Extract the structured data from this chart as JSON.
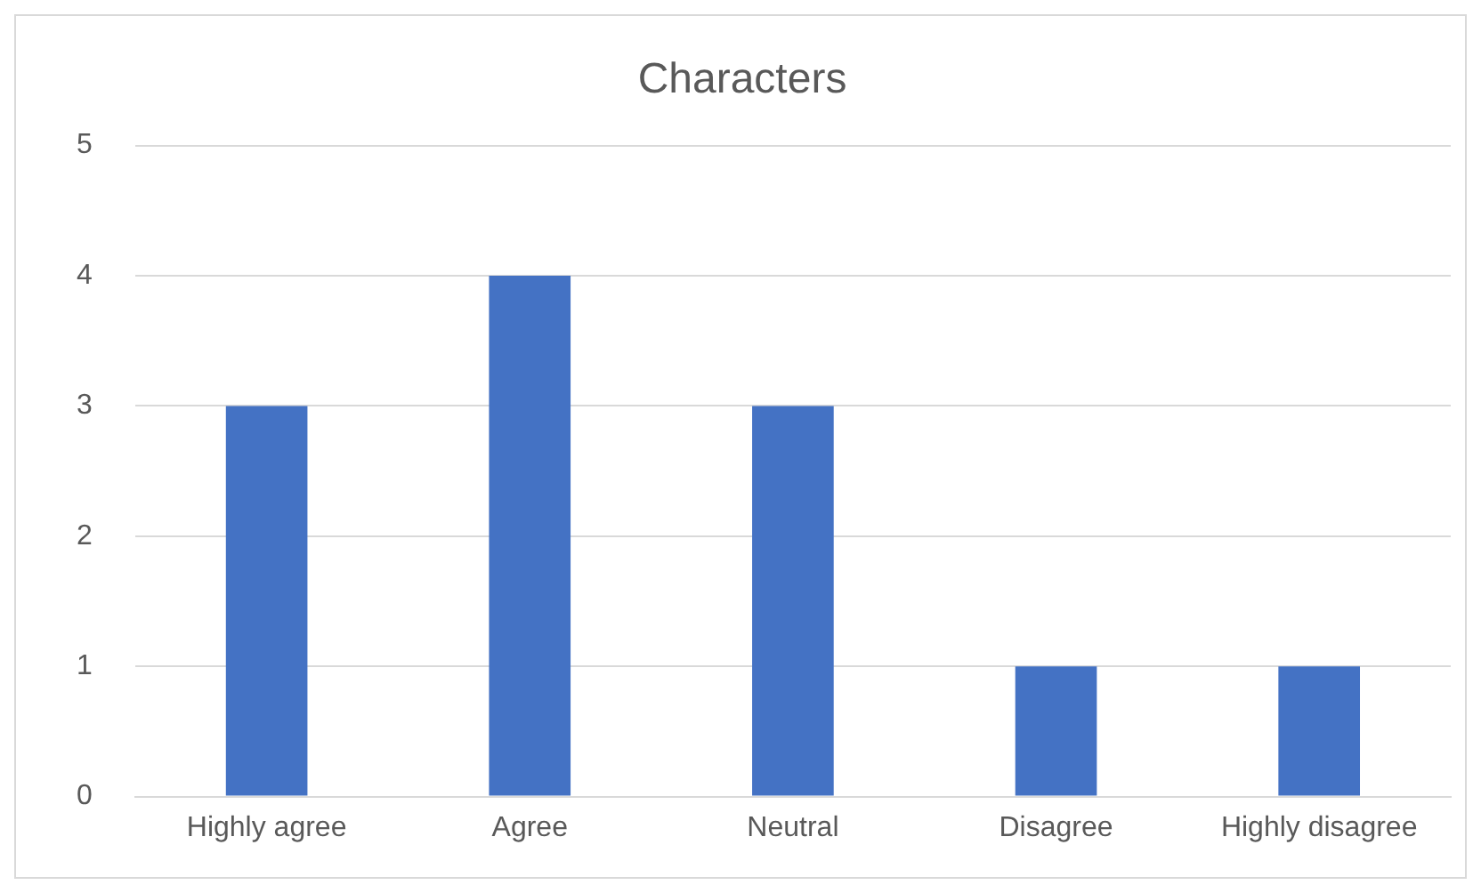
{
  "chart_data": {
    "type": "bar",
    "title": "Characters",
    "categories": [
      "Highly agree",
      "Agree",
      "Neutral",
      "Disagree",
      "Highly disagree"
    ],
    "values": [
      3,
      4,
      3,
      1,
      1
    ],
    "color": "#4472c4",
    "ylim": [
      0,
      5
    ],
    "yticks": [
      0,
      1,
      2,
      3,
      4,
      5
    ],
    "grid": "y"
  }
}
